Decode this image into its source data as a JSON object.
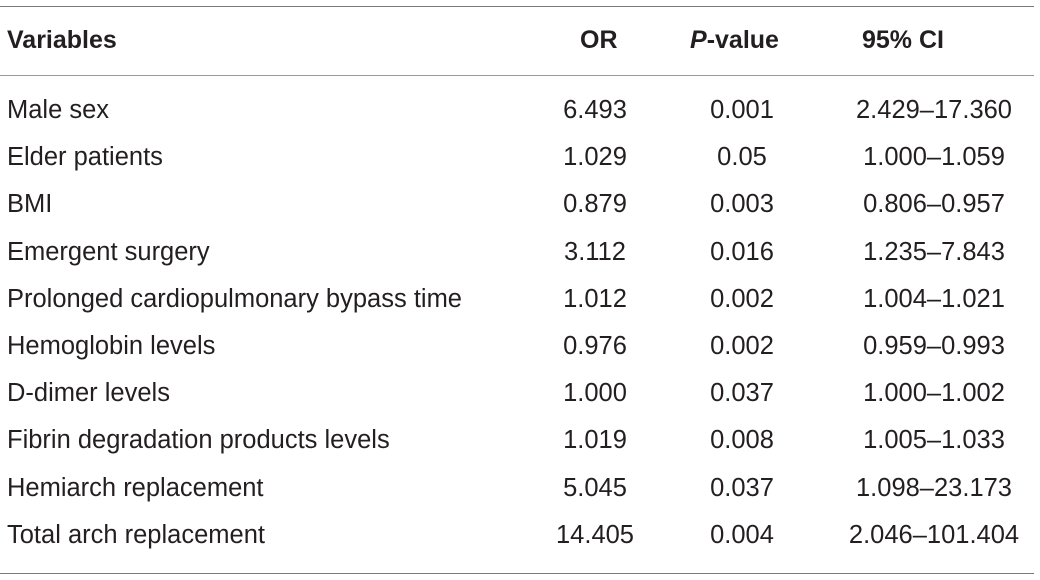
{
  "table": {
    "headers": {
      "variables": "Variables",
      "or": "OR",
      "p_value_italic": "P",
      "p_value_rest": "-value",
      "ci": "95% CI"
    },
    "rows": [
      {
        "variable": "Male sex",
        "or": "6.493",
        "p": "0.001",
        "ci": "2.429–17.360"
      },
      {
        "variable": "Elder patients",
        "or": "1.029",
        "p": "0.05",
        "ci": "1.000–1.059"
      },
      {
        "variable": "BMI",
        "or": "0.879",
        "p": "0.003",
        "ci": "0.806–0.957"
      },
      {
        "variable": "Emergent surgery",
        "or": "3.112",
        "p": "0.016",
        "ci": "1.235–7.843"
      },
      {
        "variable": "Prolonged cardiopulmonary bypass time",
        "or": "1.012",
        "p": "0.002",
        "ci": "1.004–1.021"
      },
      {
        "variable": "Hemoglobin levels",
        "or": "0.976",
        "p": "0.002",
        "ci": "0.959–0.993"
      },
      {
        "variable": "D-dimer levels",
        "or": "1.000",
        "p": "0.037",
        "ci": "1.000–1.002"
      },
      {
        "variable": "Fibrin degradation products levels",
        "or": "1.019",
        "p": "0.008",
        "ci": "1.005–1.033"
      },
      {
        "variable": "Hemiarch replacement",
        "or": "5.045",
        "p": "0.037",
        "ci": "1.098–23.173"
      },
      {
        "variable": "Total arch replacement",
        "or": "14.405",
        "p": "0.004",
        "ci": "2.046–101.404"
      }
    ]
  }
}
